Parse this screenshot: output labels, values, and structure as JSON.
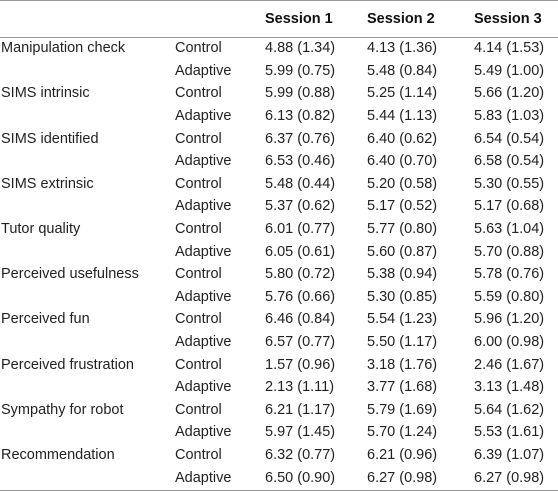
{
  "columns": {
    "measure": "",
    "condition": "",
    "session1": "Session 1",
    "session2": "Session 2",
    "session3": "Session 3"
  },
  "rows": [
    {
      "measure": "Manipulation check",
      "groups": [
        {
          "condition": "Control",
          "s1": "4.88 (1.34)",
          "s2": "4.13 (1.36)",
          "s3": "4.14 (1.53)"
        },
        {
          "condition": "Adaptive",
          "s1": "5.99 (0.75)",
          "s2": "5.48 (0.84)",
          "s3": "5.49 (1.00)"
        }
      ]
    },
    {
      "measure": "SIMS intrinsic",
      "groups": [
        {
          "condition": "Control",
          "s1": "5.99 (0.88)",
          "s2": "5.25 (1.14)",
          "s3": "5.66 (1.20)"
        },
        {
          "condition": "Adaptive",
          "s1": "6.13 (0.82)",
          "s2": "5.44 (1.13)",
          "s3": "5.83 (1.03)"
        }
      ]
    },
    {
      "measure": "SIMS identified",
      "groups": [
        {
          "condition": "Control",
          "s1": "6.37 (0.76)",
          "s2": "6.40 (0.62)",
          "s3": "6.54 (0.54)"
        },
        {
          "condition": "Adaptive",
          "s1": "6.53 (0.46)",
          "s2": "6.40 (0.70)",
          "s3": "6.58 (0.54)"
        }
      ]
    },
    {
      "measure": "SIMS extrinsic",
      "groups": [
        {
          "condition": "Control",
          "s1": "5.48 (0.44)",
          "s2": "5.20 (0.58)",
          "s3": "5.30 (0.55)"
        },
        {
          "condition": "Adaptive",
          "s1": "5.37 (0.62)",
          "s2": "5.17 (0.52)",
          "s3": "5.17 (0.68)"
        }
      ]
    },
    {
      "measure": "Tutor quality",
      "groups": [
        {
          "condition": "Control",
          "s1": "6.01 (0.77)",
          "s2": "5.77 (0.80)",
          "s3": "5.63 (1.04)"
        },
        {
          "condition": "Adaptive",
          "s1": "6.05 (0.61)",
          "s2": "5.60 (0.87)",
          "s3": "5.70 (0.88)"
        }
      ]
    },
    {
      "measure": "Perceived usefulness",
      "groups": [
        {
          "condition": "Control",
          "s1": "5.80 (0.72)",
          "s2": "5.38 (0.94)",
          "s3": "5.78 (0.76)"
        },
        {
          "condition": "Adaptive",
          "s1": "5.76 (0.66)",
          "s2": "5.30 (0.85)",
          "s3": "5.59 (0.80)"
        }
      ]
    },
    {
      "measure": "Perceived fun",
      "groups": [
        {
          "condition": "Control",
          "s1": "6.46 (0.84)",
          "s2": "5.54 (1.23)",
          "s3": "5.96 (1.20)"
        },
        {
          "condition": "Adaptive",
          "s1": "6.57 (0.77)",
          "s2": "5.50 (1.17)",
          "s3": "6.00 (0.98)"
        }
      ]
    },
    {
      "measure": "Perceived frustration",
      "groups": [
        {
          "condition": "Control",
          "s1": "1.57 (0.96)",
          "s2": "3.18 (1.76)",
          "s3": "2.46 (1.67)"
        },
        {
          "condition": "Adaptive",
          "s1": "2.13 (1.11)",
          "s2": "3.77 (1.68)",
          "s3": "3.13 (1.48)"
        }
      ]
    },
    {
      "measure": "Sympathy for robot",
      "groups": [
        {
          "condition": "Control",
          "s1": "6.21 (1.17)",
          "s2": "5.79 (1.69)",
          "s3": "5.64 (1.62)"
        },
        {
          "condition": "Adaptive",
          "s1": "5.97 (1.45)",
          "s2": "5.70 (1.24)",
          "s3": "5.53 (1.61)"
        }
      ]
    },
    {
      "measure": "Recommendation",
      "groups": [
        {
          "condition": "Control",
          "s1": "6.32 (0.77)",
          "s2": "6.21 (0.96)",
          "s3": "6.39 (1.07)"
        },
        {
          "condition": "Adaptive",
          "s1": "6.50 (0.90)",
          "s2": "6.27 (0.98)",
          "s3": "6.27 (0.98)"
        }
      ]
    }
  ]
}
